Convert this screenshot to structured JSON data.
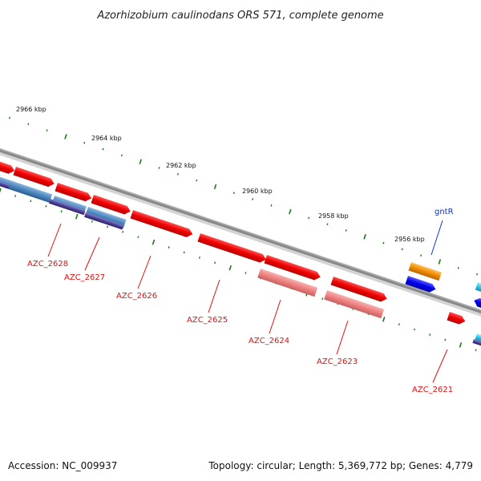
{
  "title": "Azorhizobium caulinodans ORS 571, complete genome",
  "footer": {
    "accession": "Accession: NC_009937",
    "topology": "Topology: circular; Length: 5,369,772 bp; Genes: 4,779"
  },
  "colors": {
    "backbone": "#8c8c8c",
    "tick": "#1a7a1a",
    "gene_label_red": "#dd1111",
    "gene_label_blue": "#1133cc"
  },
  "scale_labels": [
    "2966 kbp",
    "2964 kbp",
    "2962 kbp",
    "2960 kbp",
    "2958 kbp",
    "2956 kbp"
  ],
  "gene_labels": [
    {
      "text": "AZC_2628",
      "color": "#dd1111"
    },
    {
      "text": "AZC_2627",
      "color": "#dd1111"
    },
    {
      "text": "AZC_2626",
      "color": "#dd1111"
    },
    {
      "text": "AZC_2625",
      "color": "#dd1111"
    },
    {
      "text": "AZC_2624",
      "color": "#dd1111"
    },
    {
      "text": "AZC_2623",
      "color": "#dd1111"
    },
    {
      "text": "AZC_2621",
      "color": "#dd1111"
    },
    {
      "text": "gntR",
      "color": "#1133cc"
    }
  ]
}
